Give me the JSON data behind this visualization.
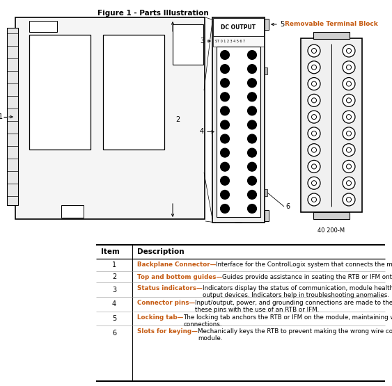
{
  "title": "Figure 1 - Parts Illustration",
  "bg_color": "#ffffff",
  "orange_color": "#C55A11",
  "black_color": "#000000",
  "table_header": [
    "Item",
    "Description"
  ],
  "rows": [
    {
      "num": "1",
      "bold": "Backplane Connector—",
      "text": "Interface for the ControlLogix system that connects the module to the backplane."
    },
    {
      "num": "2",
      "bold": "Top and bottom guides—",
      "text": "Guides provide assistance in seating the RTB or IFM onto the module."
    },
    {
      "num": "3",
      "bold": "Status indicators—",
      "text": "Indicators display the status of communication, module health, and input/\noutput devices. Indicators help in troubleshooting anomalies."
    },
    {
      "num": "4",
      "bold": "Connector pins—",
      "text": "Input/output, power, and grounding connections are made to the module through\nthese pins with the use of an RTB or IFM."
    },
    {
      "num": "5",
      "bold": "Locking tab—",
      "text": "The locking tab anchors the RTB or IFM on the module, maintaining wiring\nconnections."
    },
    {
      "num": "6",
      "bold": "Slots for keying—",
      "text": "Mechanically keys the RTB to prevent making the wrong wire connections to your\nmodule."
    }
  ],
  "removable_label": "Removable Terminal Block",
  "figure_note": "40 200-M"
}
